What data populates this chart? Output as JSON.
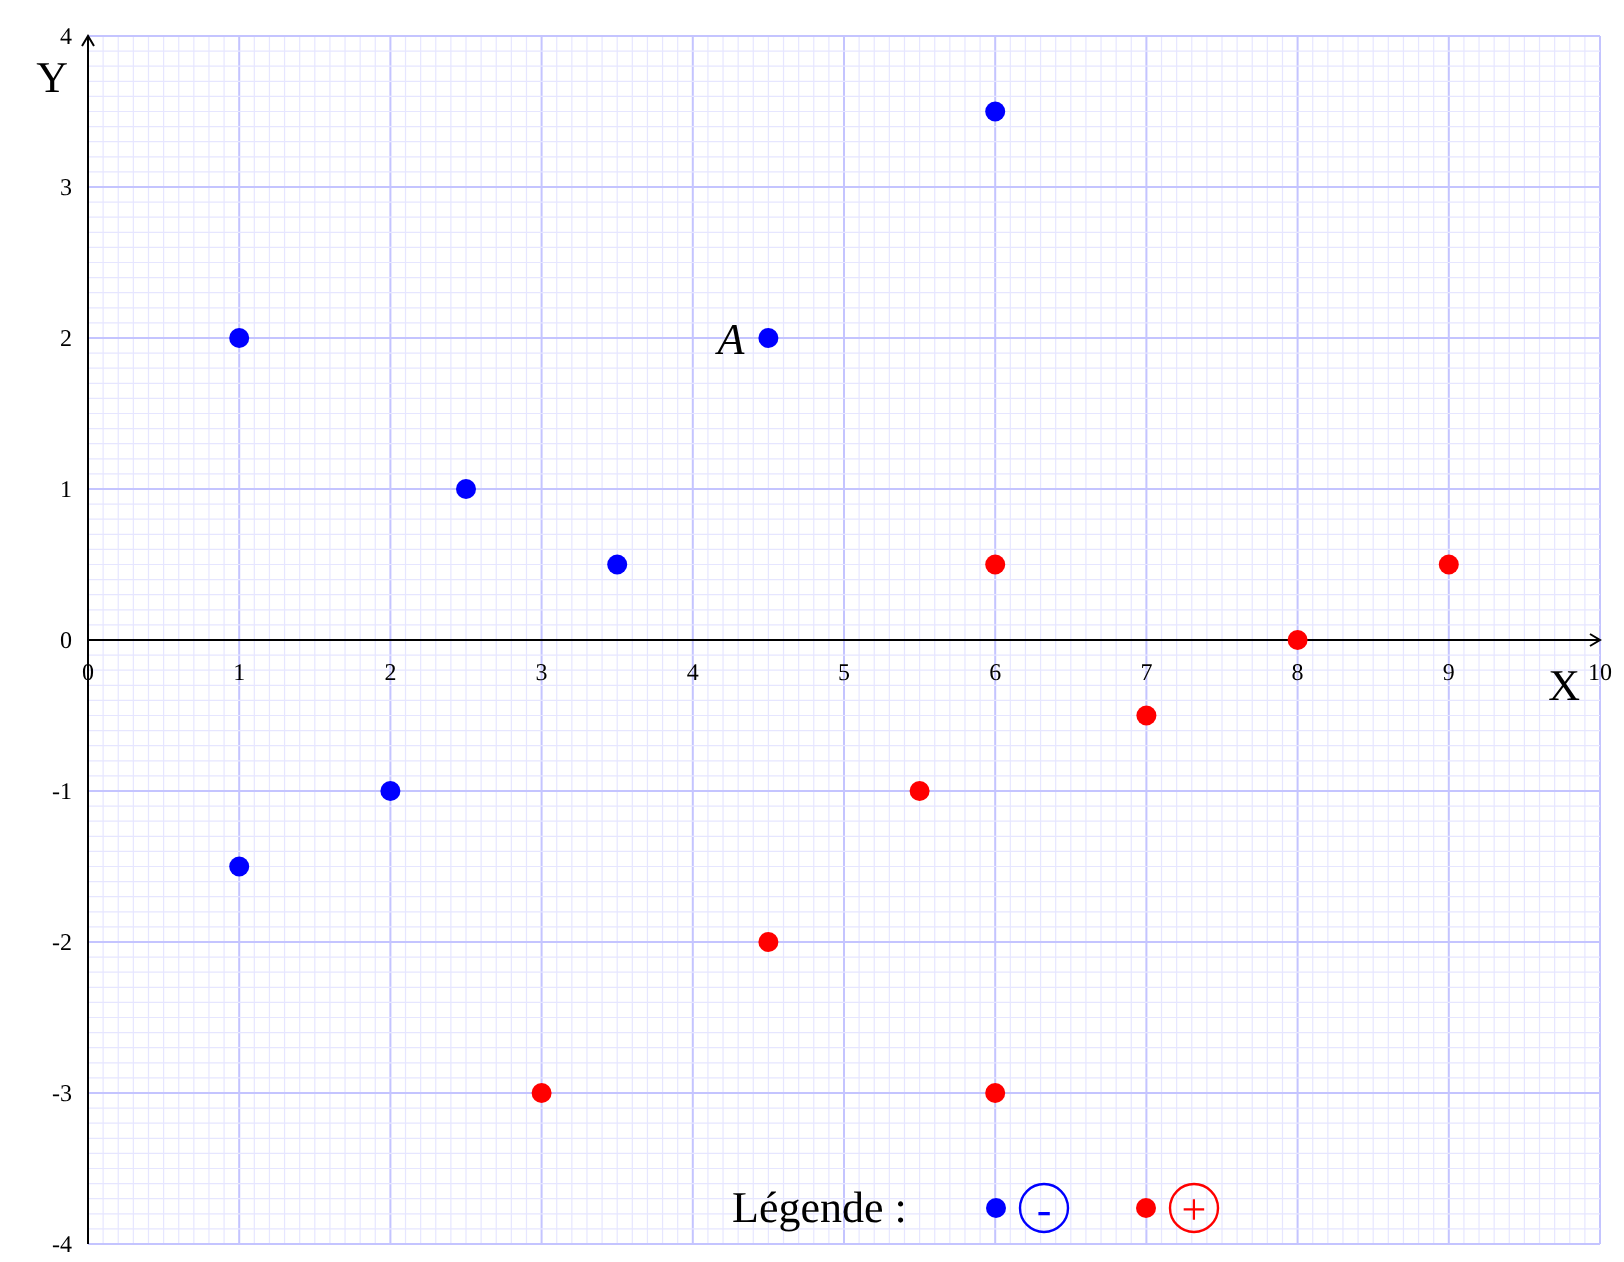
{
  "chart_data": {
    "type": "scatter",
    "xlabel": "X",
    "ylabel": "Y",
    "xlim": [
      0,
      10
    ],
    "ylim": [
      -4,
      4
    ],
    "xticks": [
      0,
      1,
      2,
      3,
      4,
      5,
      6,
      7,
      8,
      9,
      10
    ],
    "yticks": [
      -4,
      -3,
      -2,
      -1,
      0,
      1,
      2,
      3,
      4
    ],
    "grid": true,
    "marker": "circle",
    "legend": "bottom",
    "legend_title": "Légende :",
    "annotations": [
      {
        "text": "A",
        "x": 4.5,
        "y": 2
      }
    ],
    "series": [
      {
        "name": "-",
        "color": "#0000ff",
        "x": [
          1,
          2.5,
          3.5,
          4.5,
          6,
          1,
          2
        ],
        "values": [
          2,
          1,
          0.5,
          2,
          3.5,
          -1.5,
          -1
        ]
      },
      {
        "name": "+",
        "color": "#ff0000",
        "x": [
          6,
          7,
          8,
          9,
          5.5,
          4.5,
          3,
          6
        ],
        "values": [
          0.5,
          -0.5,
          0,
          0.5,
          -1,
          -2,
          -3,
          -3
        ]
      }
    ]
  }
}
